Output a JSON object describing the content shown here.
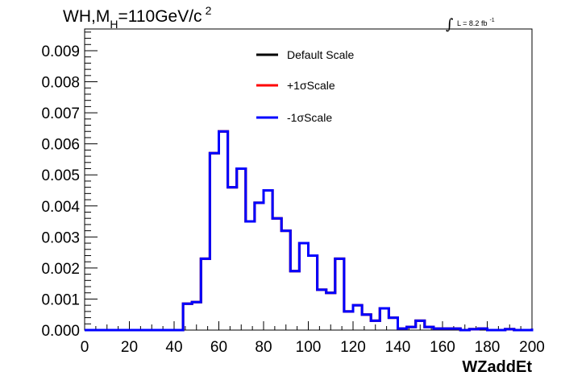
{
  "chart_data": {
    "type": "step-histogram",
    "title": {
      "main": "WH,M",
      "subscript": "H",
      "rest": "=110GeV/c",
      "superscript": "2"
    },
    "luminosity": {
      "symbol": "∫",
      "label": "L = 8.2 fb",
      "superscript": "-1"
    },
    "xlabel": "WZaddEt",
    "xlim": [
      0,
      200
    ],
    "ylim": [
      0,
      0.0097
    ],
    "xticks": [
      0,
      20,
      40,
      60,
      80,
      100,
      120,
      140,
      160,
      180,
      200
    ],
    "yticks": [
      "0.000",
      "0.001",
      "0.002",
      "0.003",
      "0.004",
      "0.005",
      "0.006",
      "0.007",
      "0.008",
      "0.009"
    ],
    "ytick_values": [
      0,
      0.001,
      0.002,
      0.003,
      0.004,
      0.005,
      0.006,
      0.007,
      0.008,
      0.009
    ],
    "legend": [
      {
        "name": "Default Scale",
        "color": "#000000"
      },
      {
        "name": "+1σScale",
        "color": "#ff0000"
      },
      {
        "name": "-1σScale",
        "color": "#0000ff"
      }
    ],
    "bin_width": 4,
    "bin_edges_start": 0,
    "series_values": [
      0,
      0,
      0,
      0,
      0,
      0,
      0,
      0,
      0,
      0,
      0,
      0.00085,
      0.0009,
      0.0023,
      0.0057,
      0.0064,
      0.0046,
      0.0052,
      0.0035,
      0.0041,
      0.0045,
      0.0036,
      0.0032,
      0.0019,
      0.0028,
      0.0024,
      0.0013,
      0.0012,
      0.0023,
      0.0006,
      0.0008,
      0.0005,
      0.0003,
      0.0007,
      0.0004,
      5e-05,
      0.0001,
      0.0003,
      0.0001,
      5e-05,
      5e-05,
      5e-05,
      0.0,
      3e-05,
      5e-05,
      0.0,
      0.0,
      3e-05,
      0.0,
      0.0,
      5e-05
    ]
  }
}
